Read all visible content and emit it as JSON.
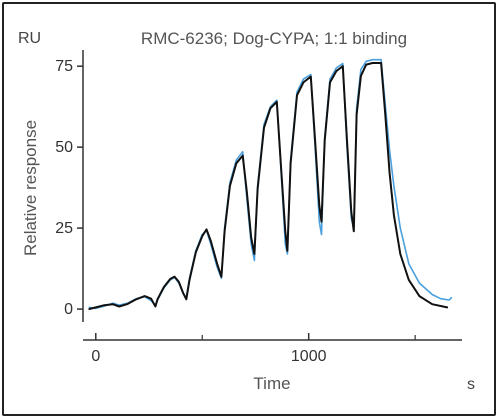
{
  "chart_data": {
    "type": "line",
    "title": "RMC-6236; Dog-CYPA; 1:1 binding",
    "xlabel": "Time",
    "ylabel": "Relative response",
    "x_unit": "s",
    "y_unit": "RU",
    "xlim": [
      -60,
      1720
    ],
    "ylim": [
      -4,
      80
    ],
    "x_ticks": [
      0,
      1000
    ],
    "x_minor_ticks": [
      500,
      1500
    ],
    "y_ticks": [
      0,
      25,
      50,
      75
    ],
    "grid": false,
    "colors": {
      "measured": "#111111",
      "fit": "#4a9fdc",
      "axis": "#333333"
    },
    "series": [
      {
        "key": "measured",
        "color": "#111111",
        "points": [
          [
            -30,
            0
          ],
          [
            0,
            0.5
          ],
          [
            40,
            1.2
          ],
          [
            80,
            1.5
          ],
          [
            110,
            0.8
          ],
          [
            150,
            1.6
          ],
          [
            190,
            3.0
          ],
          [
            230,
            4.0
          ],
          [
            260,
            3.2
          ],
          [
            280,
            0.8
          ],
          [
            290,
            3.0
          ],
          [
            320,
            6.8
          ],
          [
            350,
            9.3
          ],
          [
            370,
            10.0
          ],
          [
            390,
            8.4
          ],
          [
            410,
            5.0
          ],
          [
            425,
            3.0
          ],
          [
            440,
            9.0
          ],
          [
            470,
            17.5
          ],
          [
            500,
            22.5
          ],
          [
            520,
            24.6
          ],
          [
            540,
            21.0
          ],
          [
            570,
            14.0
          ],
          [
            590,
            10.0
          ],
          [
            605,
            24.0
          ],
          [
            630,
            38.0
          ],
          [
            660,
            45.0
          ],
          [
            690,
            47.4
          ],
          [
            710,
            36.0
          ],
          [
            730,
            22.0
          ],
          [
            745,
            17.0
          ],
          [
            760,
            37.0
          ],
          [
            790,
            56.0
          ],
          [
            820,
            62.0
          ],
          [
            850,
            64.0
          ],
          [
            870,
            44.0
          ],
          [
            890,
            24.0
          ],
          [
            900,
            18.0
          ],
          [
            915,
            45.0
          ],
          [
            945,
            66.0
          ],
          [
            975,
            70.0
          ],
          [
            1010,
            71.8
          ],
          [
            1030,
            52.0
          ],
          [
            1050,
            32.0
          ],
          [
            1060,
            27.0
          ],
          [
            1075,
            52.0
          ],
          [
            1100,
            70.0
          ],
          [
            1130,
            73.5
          ],
          [
            1160,
            75.0
          ],
          [
            1180,
            52.0
          ],
          [
            1200,
            30.0
          ],
          [
            1212,
            24.0
          ],
          [
            1225,
            60.0
          ],
          [
            1245,
            72.0
          ],
          [
            1270,
            75.5
          ],
          [
            1300,
            76.0
          ],
          [
            1340,
            76.0
          ],
          [
            1360,
            60.0
          ],
          [
            1380,
            42.0
          ],
          [
            1400,
            29.0
          ],
          [
            1430,
            17.0
          ],
          [
            1470,
            9.0
          ],
          [
            1520,
            4.0
          ],
          [
            1580,
            1.5
          ],
          [
            1650,
            0.5
          ]
        ]
      },
      {
        "key": "fit",
        "color": "#4a9fdc",
        "points": [
          [
            -30,
            0.5
          ],
          [
            0,
            0.2
          ],
          [
            40,
            0.9
          ],
          [
            80,
            1.8
          ],
          [
            110,
            1.2
          ],
          [
            150,
            1.8
          ],
          [
            190,
            3.2
          ],
          [
            230,
            3.8
          ],
          [
            260,
            2.6
          ],
          [
            280,
            1.2
          ],
          [
            290,
            2.8
          ],
          [
            320,
            6.5
          ],
          [
            350,
            9.0
          ],
          [
            370,
            9.8
          ],
          [
            390,
            8.0
          ],
          [
            410,
            4.8
          ],
          [
            425,
            3.5
          ],
          [
            440,
            9.5
          ],
          [
            470,
            18.0
          ],
          [
            500,
            23.0
          ],
          [
            520,
            24.3
          ],
          [
            540,
            20.0
          ],
          [
            570,
            13.0
          ],
          [
            590,
            9.5
          ],
          [
            605,
            25.0
          ],
          [
            630,
            39.0
          ],
          [
            660,
            46.0
          ],
          [
            690,
            48.6
          ],
          [
            710,
            34.0
          ],
          [
            730,
            20.0
          ],
          [
            745,
            15.0
          ],
          [
            760,
            38.0
          ],
          [
            790,
            57.0
          ],
          [
            820,
            62.5
          ],
          [
            850,
            64.5
          ],
          [
            870,
            43.0
          ],
          [
            890,
            20.0
          ],
          [
            900,
            17.0
          ],
          [
            915,
            46.0
          ],
          [
            945,
            67.0
          ],
          [
            975,
            71.0
          ],
          [
            1010,
            72.4
          ],
          [
            1030,
            50.0
          ],
          [
            1050,
            27.0
          ],
          [
            1060,
            23.0
          ],
          [
            1075,
            53.0
          ],
          [
            1100,
            71.0
          ],
          [
            1130,
            74.5
          ],
          [
            1160,
            75.8
          ],
          [
            1180,
            50.0
          ],
          [
            1200,
            28.0
          ],
          [
            1212,
            25.0
          ],
          [
            1225,
            62.0
          ],
          [
            1245,
            74.0
          ],
          [
            1270,
            76.5
          ],
          [
            1300,
            77.0
          ],
          [
            1340,
            77.0
          ],
          [
            1360,
            63.0
          ],
          [
            1380,
            49.0
          ],
          [
            1400,
            38.0
          ],
          [
            1430,
            25.0
          ],
          [
            1470,
            14.0
          ],
          [
            1520,
            8.0
          ],
          [
            1580,
            4.5
          ],
          [
            1620,
            3.2
          ],
          [
            1660,
            2.8
          ],
          [
            1670,
            3.5
          ]
        ]
      }
    ]
  }
}
